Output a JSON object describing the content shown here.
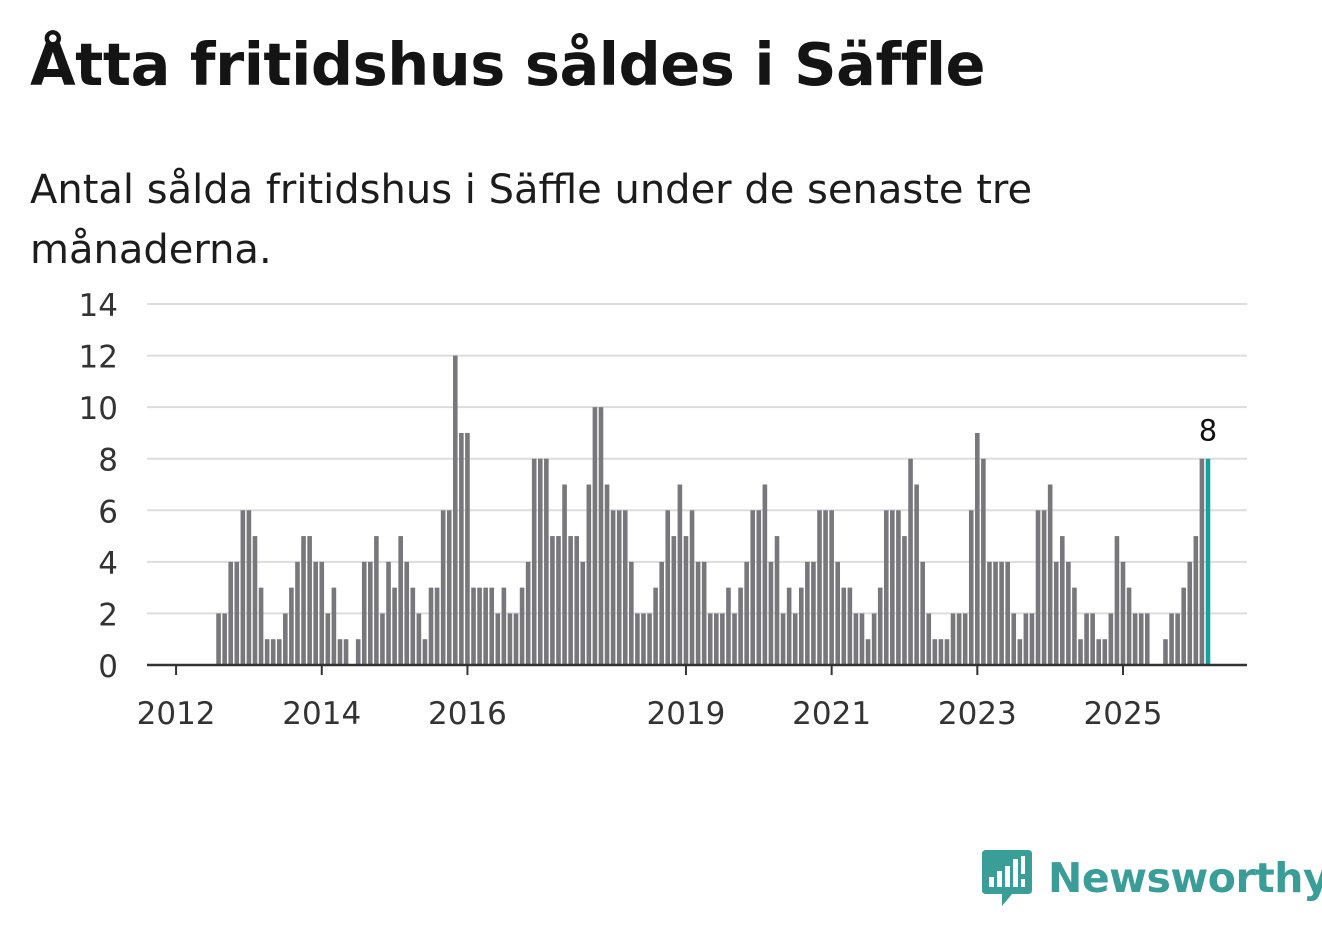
{
  "header": {
    "title": "Åtta fritidshus såldes i Säffle",
    "subtitle": "Antal sålda fritidshus i Säffle under de senaste tre månaderna."
  },
  "brand": {
    "name": "Newsworthy",
    "color": "#3a9d97"
  },
  "colors": {
    "bar": "#78777c",
    "highlight": "#16a3a0",
    "grid": "#dddddd",
    "axis": "#333333"
  },
  "chart_data": {
    "type": "bar",
    "title": "Åtta fritidshus såldes i Säffle",
    "xlabel": "",
    "ylabel": "",
    "ylim": [
      0,
      14
    ],
    "yticks": [
      0,
      2,
      4,
      6,
      8,
      10,
      12,
      14
    ],
    "grid": true,
    "start_period": "2011-09",
    "period_unit": "month",
    "year_ticks": [
      {
        "label": "2012",
        "index": 4
      },
      {
        "label": "2014",
        "index": 28
      },
      {
        "label": "2016",
        "index": 52
      },
      {
        "label": "2019",
        "index": 88
      },
      {
        "label": "2021",
        "index": 112
      },
      {
        "label": "2023",
        "index": 136
      },
      {
        "label": "2025",
        "index": 160
      }
    ],
    "values": [
      0,
      0,
      0,
      0,
      0,
      0,
      0,
      0,
      0,
      0,
      0,
      2,
      2,
      4,
      4,
      6,
      6,
      5,
      3,
      1,
      1,
      1,
      2,
      3,
      4,
      5,
      5,
      4,
      4,
      2,
      3,
      1,
      1,
      0,
      1,
      4,
      4,
      5,
      2,
      4,
      3,
      5,
      4,
      3,
      2,
      1,
      3,
      3,
      6,
      6,
      12,
      9,
      9,
      3,
      3,
      3,
      3,
      2,
      3,
      2,
      2,
      3,
      4,
      8,
      8,
      8,
      5,
      5,
      7,
      5,
      5,
      4,
      7,
      10,
      10,
      7,
      6,
      6,
      6,
      4,
      2,
      2,
      2,
      3,
      4,
      6,
      5,
      7,
      5,
      6,
      4,
      4,
      2,
      2,
      2,
      3,
      2,
      3,
      4,
      6,
      6,
      7,
      4,
      5,
      2,
      3,
      2,
      3,
      4,
      4,
      6,
      6,
      6,
      4,
      3,
      3,
      2,
      2,
      1,
      2,
      3,
      6,
      6,
      6,
      5,
      8,
      7,
      4,
      2,
      1,
      1,
      1,
      2,
      2,
      2,
      6,
      9,
      8,
      4,
      4,
      4,
      4,
      2,
      1,
      2,
      2,
      6,
      6,
      7,
      4,
      5,
      4,
      3,
      1,
      2,
      2,
      1,
      1,
      2,
      5,
      4,
      3,
      2,
      2,
      2,
      0,
      0,
      1,
      2,
      2,
      3,
      4,
      5,
      8,
      8
    ],
    "highlight_index": 174,
    "annotation": {
      "index": 174,
      "text": "8"
    }
  }
}
